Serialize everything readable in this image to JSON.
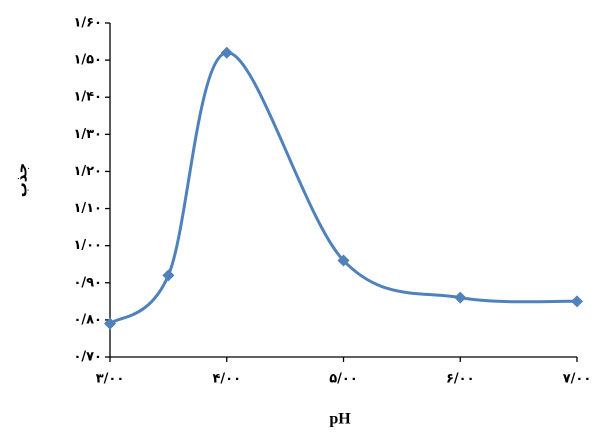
{
  "chart_data": {
    "type": "line",
    "x_label": "pH",
    "y_label": "جذب",
    "x": [
      3,
      3.5,
      4,
      5,
      6,
      7
    ],
    "series": [
      {
        "color": "#4f81bd",
        "values": [
          0.79,
          0.92,
          1.52,
          0.96,
          0.86,
          0.85
        ]
      }
    ],
    "xlim": [
      3,
      7
    ],
    "xticks": [
      {
        "value": 3,
        "label": "۳/۰۰"
      },
      {
        "value": 4,
        "label": "۴/۰۰"
      },
      {
        "value": 5,
        "label": "۵/۰۰"
      },
      {
        "value": 6,
        "label": "۶/۰۰"
      },
      {
        "value": 7,
        "label": "۷/۰۰"
      }
    ],
    "ylim": [
      0.7,
      1.6
    ],
    "yticks": [
      {
        "value": 0.7,
        "label": "۰/۷۰"
      },
      {
        "value": 0.8,
        "label": "۰/۸۰"
      },
      {
        "value": 0.9,
        "label": "۰/۹۰"
      },
      {
        "value": 1.0,
        "label": "۱/۰۰"
      },
      {
        "value": 1.1,
        "label": "۱/۱۰"
      },
      {
        "value": 1.2,
        "label": "۱/۲۰"
      },
      {
        "value": 1.3,
        "label": "۱/۳۰"
      },
      {
        "value": 1.4,
        "label": "۱/۴۰"
      },
      {
        "value": 1.5,
        "label": "۱/۵۰"
      },
      {
        "value": 1.6,
        "label": "۱/۶۰"
      }
    ],
    "smooth": true,
    "marker": "diamond"
  }
}
